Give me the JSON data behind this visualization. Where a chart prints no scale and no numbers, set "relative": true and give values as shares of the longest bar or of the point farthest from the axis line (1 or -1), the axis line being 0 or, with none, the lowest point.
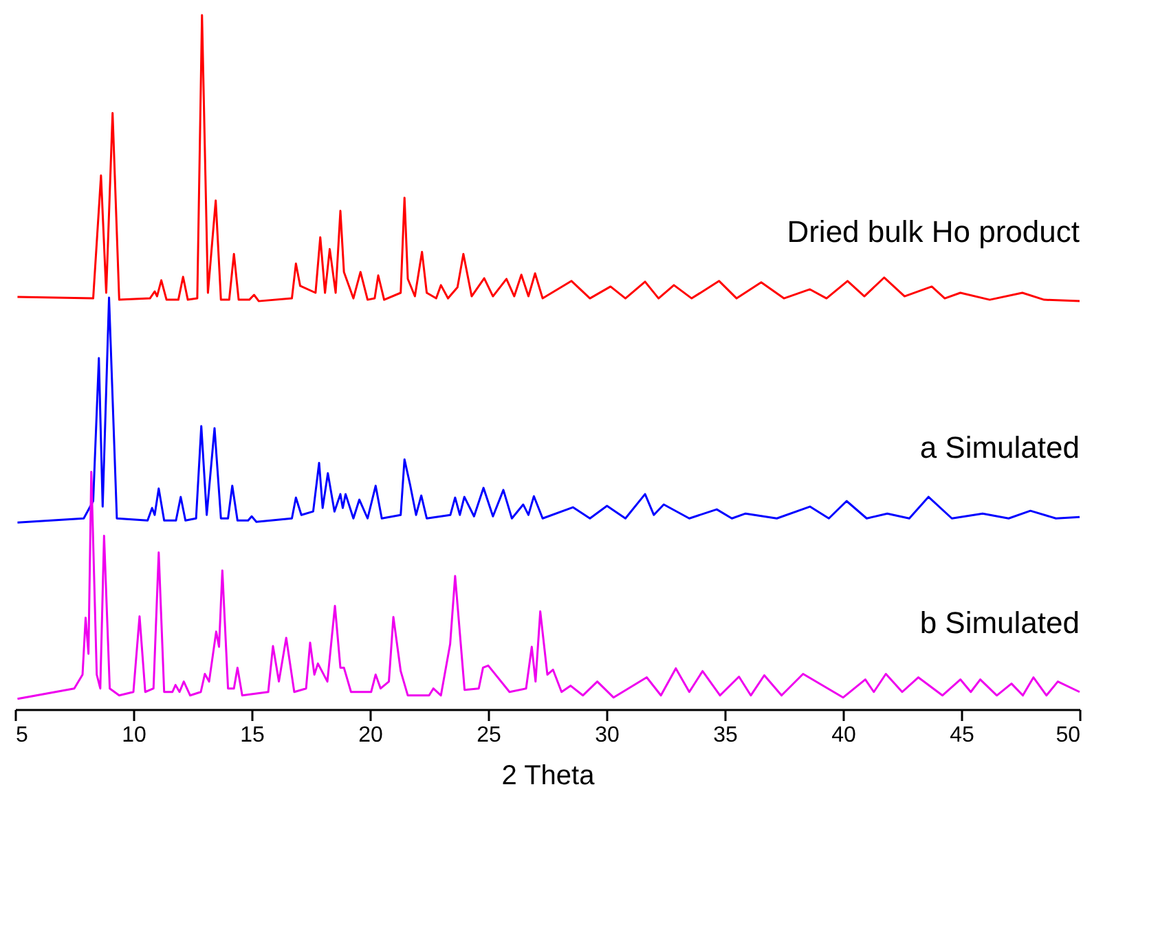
{
  "chart_data": {
    "type": "line",
    "relative": true,
    "xlabel": "2 Theta",
    "xlim": [
      5,
      50
    ],
    "xticks": [
      5,
      10,
      15,
      20,
      25,
      30,
      35,
      40,
      45,
      50
    ],
    "grid": false,
    "legend": false,
    "marker": "none",
    "line_style": "solid",
    "series": [
      {
        "name": "Dried bulk Ho product",
        "color": "#ff0000",
        "x": [
          5.1,
          8.3,
          8.63,
          8.85,
          9.12,
          9.4,
          10.7,
          10.9,
          11.0,
          11.18,
          11.4,
          11.9,
          12.1,
          12.3,
          12.7,
          12.9,
          13.15,
          13.48,
          13.7,
          14.05,
          14.25,
          14.45,
          14.9,
          15.1,
          15.3,
          16.7,
          16.87,
          17.05,
          17.7,
          17.9,
          18.1,
          18.3,
          18.55,
          18.75,
          18.9,
          19.3,
          19.6,
          19.9,
          20.2,
          20.35,
          20.6,
          21.3,
          21.46,
          21.6,
          21.9,
          22.2,
          22.4,
          22.8,
          23.0,
          23.3,
          23.7,
          23.95,
          24.3,
          24.83,
          25.2,
          25.77,
          26.1,
          26.4,
          26.7,
          26.98,
          27.3,
          28.52,
          29.3,
          30.17,
          30.8,
          31.63,
          32.2,
          32.85,
          33.6,
          34.76,
          35.5,
          36.54,
          37.5,
          38.6,
          39.3,
          40.19,
          40.9,
          41.74,
          42.6,
          43.75,
          44.3,
          44.96,
          46.2,
          47.58,
          48.5,
          50
        ],
        "values": [
          0.594,
          0.592,
          0.769,
          0.6,
          0.859,
          0.59,
          0.592,
          0.602,
          0.595,
          0.618,
          0.59,
          0.59,
          0.623,
          0.59,
          0.592,
          1.0,
          0.6,
          0.733,
          0.59,
          0.59,
          0.656,
          0.59,
          0.59,
          0.597,
          0.588,
          0.592,
          0.642,
          0.61,
          0.6,
          0.68,
          0.6,
          0.663,
          0.6,
          0.718,
          0.63,
          0.592,
          0.63,
          0.59,
          0.592,
          0.625,
          0.59,
          0.6,
          0.737,
          0.62,
          0.595,
          0.659,
          0.6,
          0.592,
          0.611,
          0.592,
          0.608,
          0.656,
          0.595,
          0.621,
          0.595,
          0.62,
          0.595,
          0.626,
          0.595,
          0.628,
          0.592,
          0.617,
          0.592,
          0.609,
          0.592,
          0.616,
          0.592,
          0.611,
          0.592,
          0.617,
          0.592,
          0.615,
          0.592,
          0.605,
          0.592,
          0.617,
          0.595,
          0.622,
          0.595,
          0.609,
          0.592,
          0.6,
          0.59,
          0.6,
          0.59,
          0.588
        ]
      },
      {
        "name": "a Simulated",
        "color": "#0000ff",
        "x": [
          5.1,
          7.9,
          8.3,
          8.54,
          8.7,
          8.97,
          9.3,
          10.6,
          10.79,
          10.9,
          11.07,
          11.3,
          11.8,
          12.0,
          12.2,
          12.65,
          12.87,
          13.1,
          13.43,
          13.7,
          14.0,
          14.18,
          14.4,
          14.85,
          15.0,
          15.2,
          16.7,
          16.87,
          17.1,
          17.6,
          17.85,
          18.0,
          18.22,
          18.5,
          18.75,
          18.85,
          18.97,
          19.3,
          19.55,
          19.9,
          20.24,
          20.5,
          21.3,
          21.46,
          21.7,
          21.95,
          22.17,
          22.4,
          23.4,
          23.6,
          23.8,
          23.99,
          24.4,
          24.8,
          25.2,
          25.64,
          26.0,
          26.48,
          26.7,
          26.93,
          27.3,
          28.58,
          29.3,
          30.02,
          30.8,
          31.63,
          32.0,
          32.42,
          33.5,
          34.66,
          35.3,
          35.88,
          37.2,
          38.6,
          39.4,
          40.15,
          41.0,
          41.87,
          42.8,
          43.61,
          44.6,
          45.9,
          47.0,
          47.92,
          49.0,
          50
        ],
        "values": [
          0.269,
          0.275,
          0.3,
          0.506,
          0.292,
          0.593,
          0.275,
          0.272,
          0.29,
          0.28,
          0.318,
          0.272,
          0.272,
          0.306,
          0.272,
          0.275,
          0.408,
          0.28,
          0.405,
          0.275,
          0.275,
          0.322,
          0.272,
          0.272,
          0.278,
          0.27,
          0.275,
          0.305,
          0.28,
          0.285,
          0.355,
          0.29,
          0.34,
          0.285,
          0.31,
          0.29,
          0.31,
          0.275,
          0.302,
          0.275,
          0.322,
          0.275,
          0.28,
          0.36,
          0.323,
          0.28,
          0.308,
          0.275,
          0.28,
          0.305,
          0.28,
          0.306,
          0.278,
          0.319,
          0.278,
          0.316,
          0.275,
          0.295,
          0.28,
          0.307,
          0.275,
          0.291,
          0.275,
          0.293,
          0.275,
          0.31,
          0.28,
          0.295,
          0.275,
          0.288,
          0.275,
          0.282,
          0.275,
          0.292,
          0.275,
          0.3,
          0.275,
          0.282,
          0.275,
          0.306,
          0.275,
          0.282,
          0.275,
          0.286,
          0.275,
          0.277
        ]
      },
      {
        "name": "b Simulated",
        "color": "#ee00ee",
        "x": [
          5.1,
          7.5,
          7.85,
          7.98,
          8.1,
          8.22,
          8.45,
          8.6,
          8.76,
          9.0,
          9.4,
          10.0,
          10.26,
          10.5,
          10.85,
          11.07,
          11.3,
          11.65,
          11.78,
          11.95,
          12.13,
          12.4,
          12.85,
          13.02,
          13.2,
          13.5,
          13.62,
          13.76,
          14.0,
          14.25,
          14.4,
          14.6,
          15.7,
          15.9,
          16.15,
          16.46,
          16.8,
          17.3,
          17.47,
          17.65,
          17.8,
          18.2,
          18.52,
          18.75,
          18.9,
          19.2,
          20.05,
          20.24,
          20.45,
          20.8,
          20.99,
          21.3,
          21.6,
          22.5,
          22.68,
          23.0,
          23.39,
          23.6,
          24.0,
          24.6,
          24.78,
          25.0,
          25.9,
          26.6,
          26.84,
          27.0,
          27.2,
          27.5,
          27.74,
          28.1,
          28.48,
          29.0,
          29.61,
          30.3,
          31.7,
          32.3,
          32.93,
          33.5,
          34.06,
          34.8,
          35.6,
          36.1,
          36.67,
          37.4,
          38.31,
          40.0,
          40.94,
          41.3,
          41.81,
          42.5,
          43.18,
          44.2,
          44.96,
          45.4,
          45.8,
          46.5,
          47.12,
          47.6,
          48.05,
          48.6,
          49.08,
          50
        ],
        "values": [
          0.015,
          0.03,
          0.05,
          0.132,
          0.08,
          0.342,
          0.05,
          0.03,
          0.25,
          0.03,
          0.02,
          0.025,
          0.134,
          0.025,
          0.03,
          0.226,
          0.025,
          0.025,
          0.035,
          0.025,
          0.04,
          0.02,
          0.025,
          0.051,
          0.04,
          0.112,
          0.09,
          0.2,
          0.03,
          0.03,
          0.06,
          0.02,
          0.025,
          0.091,
          0.04,
          0.103,
          0.025,
          0.03,
          0.096,
          0.05,
          0.066,
          0.04,
          0.149,
          0.06,
          0.06,
          0.025,
          0.025,
          0.05,
          0.03,
          0.04,
          0.133,
          0.055,
          0.02,
          0.02,
          0.03,
          0.02,
          0.094,
          0.192,
          0.028,
          0.03,
          0.06,
          0.063,
          0.025,
          0.03,
          0.09,
          0.04,
          0.141,
          0.05,
          0.057,
          0.025,
          0.034,
          0.02,
          0.04,
          0.017,
          0.046,
          0.02,
          0.059,
          0.025,
          0.055,
          0.02,
          0.047,
          0.02,
          0.049,
          0.02,
          0.051,
          0.017,
          0.043,
          0.025,
          0.051,
          0.025,
          0.046,
          0.02,
          0.043,
          0.025,
          0.043,
          0.02,
          0.037,
          0.02,
          0.046,
          0.02,
          0.04,
          0.025
        ]
      }
    ]
  }
}
